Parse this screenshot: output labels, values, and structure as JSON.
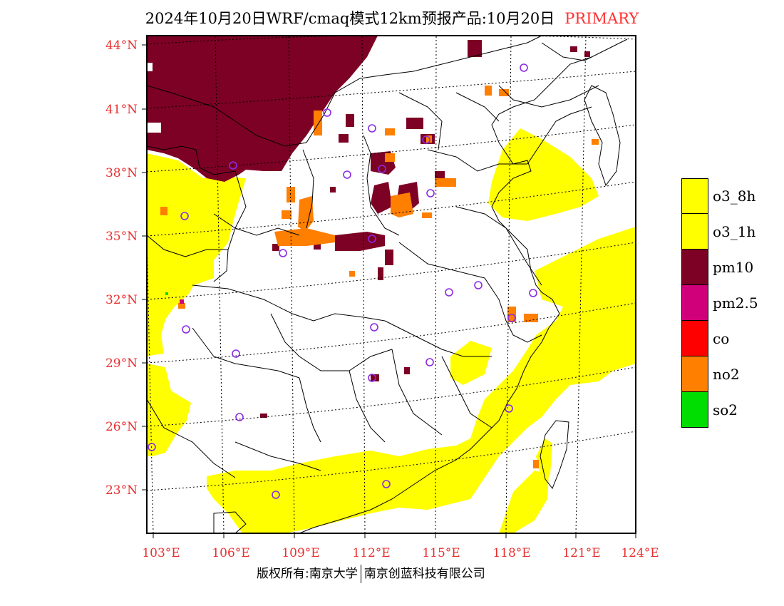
{
  "header": {
    "title": "2024年10月20日WRF/cmaq模式12km预报产品:10月20日",
    "tag": "PRIMARY",
    "tag_color": "#ff3030"
  },
  "axes": {
    "lat_labels": [
      "44°N",
      "41°N",
      "38°N",
      "35°N",
      "32°N",
      "29°N",
      "26°N",
      "23°N"
    ],
    "lon_labels": [
      "103°E",
      "106°E",
      "109°E",
      "112°E",
      "115°E",
      "118°E",
      "121°E",
      "124°E"
    ],
    "label_color": "#e83030"
  },
  "legend": [
    {
      "label": "o3_8h",
      "color": "#ffff00"
    },
    {
      "label": "o3_1h",
      "color": "#ffff00"
    },
    {
      "label": "pm10",
      "color": "#7d0025"
    },
    {
      "label": "pm2.5",
      "color": "#d0007a"
    },
    {
      "label": "co",
      "color": "#ff0000"
    },
    {
      "label": "no2",
      "color": "#ff7f00"
    },
    {
      "label": "so2",
      "color": "#00dd00"
    }
  ],
  "footer": {
    "left": "版权所有:南京大学",
    "right": "南京创蓝科技有限公司"
  }
}
